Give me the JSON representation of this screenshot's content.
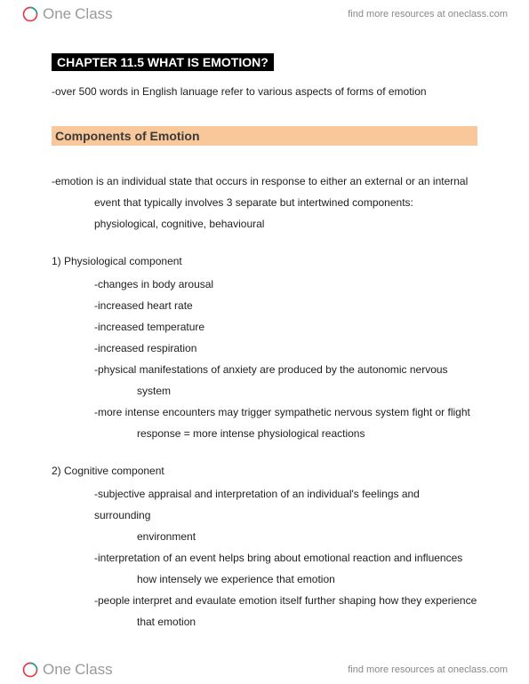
{
  "brand": {
    "one": "One",
    "class": "Class"
  },
  "resources_link": "find more resources at oneclass.com",
  "chapter_title": "CHAPTER 11.5 WHAT IS EMOTION?",
  "intro": "-over 500 words in English lanuage refer to various aspects of forms of emotion",
  "section_title": "Components of Emotion",
  "definition": {
    "line1": "-emotion is an individual state that occurs in response to either an external or an internal",
    "line2": "event that typically involves 3 separate but intertwined components:",
    "line3": "physiological, cognitive, behavioural"
  },
  "components": [
    {
      "head": "1) Physiological component",
      "items": [
        {
          "t": "-changes in body arousal"
        },
        {
          "t": "-increased heart rate"
        },
        {
          "t": "-increased temperature"
        },
        {
          "t": "-increased respiration"
        },
        {
          "t": "-physical manifestations of anxiety are produced by the autonomic nervous",
          "c": "system"
        },
        {
          "t": "-more intense encounters may trigger sympathetic nervous system fight or flight",
          "c": "response = more intense physiological reactions"
        }
      ]
    },
    {
      "head": "2) Cognitive component",
      "items": [
        {
          "t": "-subjective appraisal and interpretation of an individual's feelings and surrounding",
          "c": "environment"
        },
        {
          "t": "-interpretation of an event helps bring about emotional reaction and influences",
          "c": "how intensely we experience that emotion"
        },
        {
          "t": "-people interpret and evaulate emotion itself further shaping how they experience",
          "c": "that emotion"
        }
      ]
    }
  ],
  "colors": {
    "section_bg": "#f8c89a",
    "title_bg": "#000000",
    "title_fg": "#ffffff",
    "text": "#202020",
    "link": "#888888"
  }
}
